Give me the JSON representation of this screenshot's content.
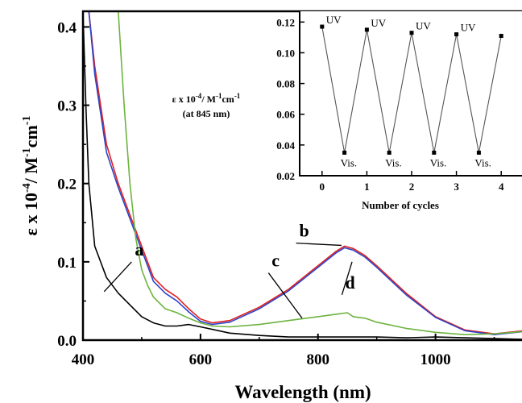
{
  "chart_data": [
    {
      "type": "line",
      "xlabel": "Wavelength (nm)",
      "ylabel": {
        "prefix": "ε x 10",
        "exp1": "-4",
        "mid": "/ M",
        "exp2": "-1",
        "unit": "cm",
        "exp3": "-1"
      },
      "xlim": [
        400,
        1150
      ],
      "ylim": [
        0,
        0.42
      ],
      "xticks": [
        400,
        600,
        800,
        1000
      ],
      "yticks": [
        0.0,
        0.1,
        0.2,
        0.3,
        0.4
      ],
      "ytick_labels": [
        "0.0",
        "0.1",
        "0.2",
        "0.3",
        "0.4"
      ],
      "series": [
        {
          "name": "a",
          "color": "#000000",
          "x": [
            400,
            405,
            410,
            420,
            440,
            460,
            480,
            500,
            520,
            540,
            560,
            580,
            600,
            650,
            700,
            750,
            800,
            850,
            900,
            950,
            1000,
            1050,
            1100,
            1150
          ],
          "y": [
            0.42,
            0.3,
            0.2,
            0.12,
            0.08,
            0.06,
            0.045,
            0.03,
            0.022,
            0.018,
            0.018,
            0.02,
            0.017,
            0.009,
            0.006,
            0.004,
            0.004,
            0.004,
            0.004,
            0.003,
            0.004,
            0.003,
            0.002,
            0.001
          ]
        },
        {
          "name": "b",
          "color": "#e0201f",
          "x": [
            410,
            420,
            440,
            460,
            480,
            500,
            520,
            540,
            560,
            580,
            600,
            620,
            650,
            700,
            750,
            800,
            830,
            845,
            860,
            880,
            900,
            950,
            1000,
            1050,
            1100,
            1150
          ],
          "y": [
            0.42,
            0.35,
            0.25,
            0.2,
            0.16,
            0.12,
            0.08,
            0.065,
            0.055,
            0.04,
            0.027,
            0.022,
            0.025,
            0.042,
            0.065,
            0.095,
            0.113,
            0.12,
            0.117,
            0.108,
            0.095,
            0.06,
            0.03,
            0.013,
            0.008,
            0.012
          ]
        },
        {
          "name": "d",
          "color": "#2e43c8",
          "x": [
            410,
            420,
            440,
            460,
            480,
            500,
            520,
            540,
            560,
            580,
            600,
            620,
            650,
            700,
            750,
            800,
            830,
            845,
            860,
            880,
            900,
            950,
            1000,
            1050,
            1100,
            1150
          ],
          "y": [
            0.42,
            0.34,
            0.24,
            0.195,
            0.155,
            0.115,
            0.075,
            0.06,
            0.05,
            0.036,
            0.024,
            0.02,
            0.023,
            0.04,
            0.063,
            0.093,
            0.111,
            0.118,
            0.115,
            0.106,
            0.093,
            0.058,
            0.029,
            0.012,
            0.007,
            0.011
          ]
        },
        {
          "name": "c",
          "color": "#6db33f",
          "x": [
            460,
            470,
            480,
            490,
            500,
            510,
            520,
            540,
            560,
            580,
            600,
            620,
            650,
            700,
            750,
            800,
            830,
            850,
            860,
            880,
            900,
            950,
            1000,
            1050,
            1100,
            1150
          ],
          "y": [
            0.42,
            0.3,
            0.2,
            0.13,
            0.09,
            0.07,
            0.055,
            0.04,
            0.035,
            0.028,
            0.022,
            0.018,
            0.017,
            0.02,
            0.025,
            0.03,
            0.033,
            0.035,
            0.03,
            0.028,
            0.023,
            0.015,
            0.01,
            0.007,
            0.008,
            0.011
          ]
        }
      ],
      "curve_labels": [
        {
          "text": "a",
          "label_x": 480,
          "label_y": 0.104,
          "to_x": 436,
          "to_y": 0.062
        },
        {
          "text": "b",
          "label_x": 760,
          "label_y": 0.128,
          "to_x": 840,
          "to_y": 0.121
        },
        {
          "text": "c",
          "label_x": 713,
          "label_y": 0.09,
          "to_x": 773,
          "to_y": 0.028
        },
        {
          "text": "d",
          "label_x": 838,
          "label_y": 0.062,
          "to_x": 858,
          "to_y": 0.1
        }
      ]
    },
    {
      "type": "line",
      "title_lines": [
        "ε x 10^-4/ M^-1cm^-1",
        "(at 845 nm)"
      ],
      "ylabel": {
        "prefix": "ε x 10",
        "exp1": "-4",
        "mid": "/ M",
        "exp2": "-1",
        "unit": "cm",
        "exp3": "-1",
        "line2": "(at 845 nm)"
      },
      "xlabel": "Number of cycles",
      "xlim": [
        -0.5,
        4.5
      ],
      "ylim": [
        0.02,
        0.127
      ],
      "xticks": [
        0,
        1,
        2,
        3,
        4
      ],
      "yticks": [
        0.02,
        0.04,
        0.06,
        0.08,
        0.1,
        0.12
      ],
      "ytick_labels": [
        "0.02",
        "0.04",
        "0.06",
        "0.08",
        "0.10",
        "0.12"
      ],
      "series": [
        {
          "x": [
            0,
            0.5,
            1,
            1.5,
            2,
            2.5,
            3,
            3.5,
            4
          ],
          "y": [
            0.117,
            0.035,
            0.115,
            0.035,
            0.113,
            0.035,
            0.112,
            0.035,
            0.111
          ]
        }
      ],
      "point_labels": [
        "UV",
        "Vis.",
        "UV",
        "Vis.",
        "UV",
        "Vis.",
        "UV",
        "Vis.",
        ""
      ]
    }
  ]
}
